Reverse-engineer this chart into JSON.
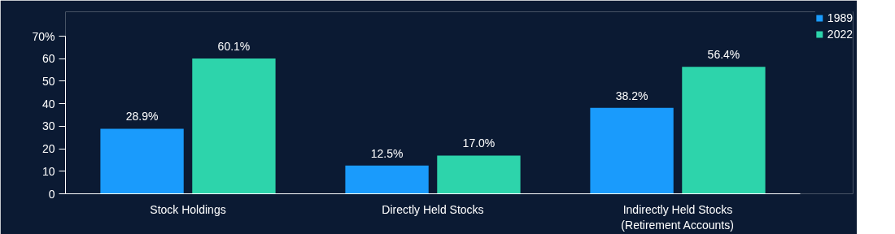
{
  "chart_data": {
    "type": "bar",
    "categories": [
      "Stock Holdings",
      "Directly Held Stocks",
      "Indirectly Held Stocks\n(Retirement Accounts)"
    ],
    "series": [
      {
        "name": "1989",
        "color": "#1a9bfc",
        "values": [
          28.9,
          12.5,
          38.2
        ],
        "value_labels": [
          "28.9%",
          "12.5%",
          "38.2%"
        ]
      },
      {
        "name": "2022",
        "color": "#2dd4ab",
        "values": [
          60.1,
          17.0,
          56.4
        ],
        "value_labels": [
          "60.1%",
          "17.0%",
          "56.4%"
        ]
      }
    ],
    "ylim": [
      0,
      70
    ],
    "yticks": [
      0,
      10,
      20,
      30,
      40,
      50,
      60,
      {
        "value": 70,
        "label": "70%"
      }
    ],
    "grid": false,
    "legend": "top right"
  }
}
